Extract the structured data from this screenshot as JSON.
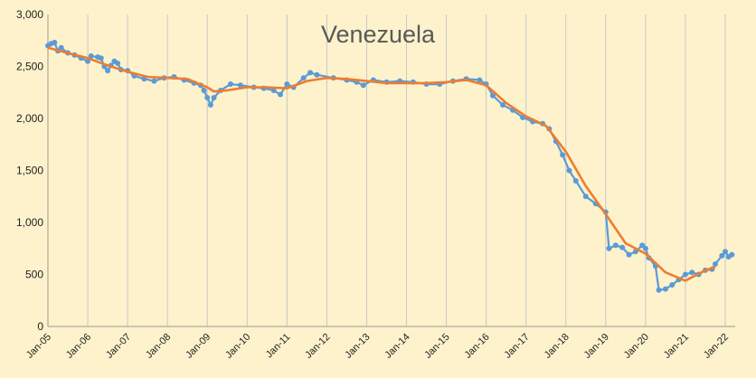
{
  "chart_data": {
    "type": "line",
    "title": "Venezuela",
    "xlabel": "",
    "ylabel": "",
    "ylim": [
      0,
      3000
    ],
    "y_ticks": [
      "0",
      "500",
      "1,000",
      "1,500",
      "2,000",
      "2,500",
      "3,000"
    ],
    "x_tick_labels": [
      "Jan-05",
      "Jan-06",
      "Jan-07",
      "Jan-08",
      "Jan-09",
      "Jan-10",
      "Jan-11",
      "Jan-12",
      "Jan-13",
      "Jan-14",
      "Jan-15",
      "Jan-16",
      "Jan-17",
      "Jan-18",
      "Jan-19",
      "Jan-20",
      "Jan-21",
      "Jan-22"
    ],
    "x_range": [
      "2005-01",
      "2022-04"
    ],
    "grid": "vertical gridlines",
    "legend": "none",
    "series": [
      {
        "color": "#5b9bd5",
        "marker": "circle",
        "points": [
          [
            "2005-01",
            2700
          ],
          [
            "2005-02",
            2720
          ],
          [
            "2005-03",
            2730
          ],
          [
            "2005-04",
            2650
          ],
          [
            "2005-05",
            2680
          ],
          [
            "2005-07",
            2630
          ],
          [
            "2005-09",
            2610
          ],
          [
            "2005-11",
            2580
          ],
          [
            "2006-01",
            2550
          ],
          [
            "2006-02",
            2600
          ],
          [
            "2006-04",
            2590
          ],
          [
            "2006-05",
            2580
          ],
          [
            "2006-06",
            2500
          ],
          [
            "2006-07",
            2460
          ],
          [
            "2006-08",
            2510
          ],
          [
            "2006-09",
            2550
          ],
          [
            "2006-10",
            2530
          ],
          [
            "2006-11",
            2470
          ],
          [
            "2007-01",
            2460
          ],
          [
            "2007-03",
            2410
          ],
          [
            "2007-06",
            2380
          ],
          [
            "2007-09",
            2360
          ],
          [
            "2007-12",
            2390
          ],
          [
            "2008-03",
            2400
          ],
          [
            "2008-06",
            2370
          ],
          [
            "2008-09",
            2340
          ],
          [
            "2008-11",
            2320
          ],
          [
            "2008-12",
            2270
          ],
          [
            "2009-01",
            2200
          ],
          [
            "2009-02",
            2130
          ],
          [
            "2009-03",
            2200
          ],
          [
            "2009-05",
            2270
          ],
          [
            "2009-08",
            2330
          ],
          [
            "2009-11",
            2320
          ],
          [
            "2010-03",
            2300
          ],
          [
            "2010-06",
            2290
          ],
          [
            "2010-09",
            2270
          ],
          [
            "2010-11",
            2230
          ],
          [
            "2011-01",
            2330
          ],
          [
            "2011-03",
            2300
          ],
          [
            "2011-06",
            2390
          ],
          [
            "2011-08",
            2440
          ],
          [
            "2011-10",
            2420
          ],
          [
            "2012-03",
            2390
          ],
          [
            "2012-07",
            2370
          ],
          [
            "2012-10",
            2350
          ],
          [
            "2012-12",
            2320
          ],
          [
            "2013-03",
            2370
          ],
          [
            "2013-07",
            2350
          ],
          [
            "2013-11",
            2360
          ],
          [
            "2014-03",
            2350
          ],
          [
            "2014-07",
            2330
          ],
          [
            "2014-11",
            2330
          ],
          [
            "2015-03",
            2360
          ],
          [
            "2015-07",
            2380
          ],
          [
            "2015-11",
            2370
          ],
          [
            "2016-01",
            2330
          ],
          [
            "2016-03",
            2220
          ],
          [
            "2016-06",
            2130
          ],
          [
            "2016-09",
            2080
          ],
          [
            "2016-12",
            2010
          ],
          [
            "2017-03",
            1970
          ],
          [
            "2017-06",
            1950
          ],
          [
            "2017-08",
            1900
          ],
          [
            "2017-10",
            1780
          ],
          [
            "2017-12",
            1650
          ],
          [
            "2018-02",
            1500
          ],
          [
            "2018-04",
            1400
          ],
          [
            "2018-07",
            1250
          ],
          [
            "2018-10",
            1180
          ],
          [
            "2019-01",
            1100
          ],
          [
            "2019-02",
            750
          ],
          [
            "2019-04",
            780
          ],
          [
            "2019-06",
            760
          ],
          [
            "2019-08",
            690
          ],
          [
            "2019-10",
            720
          ],
          [
            "2019-12",
            780
          ],
          [
            "2020-01",
            750
          ],
          [
            "2020-02",
            660
          ],
          [
            "2020-04",
            580
          ],
          [
            "2020-05",
            350
          ],
          [
            "2020-07",
            360
          ],
          [
            "2020-09",
            400
          ],
          [
            "2020-11",
            450
          ],
          [
            "2021-01",
            500
          ],
          [
            "2021-03",
            520
          ],
          [
            "2021-05",
            500
          ],
          [
            "2021-07",
            540
          ],
          [
            "2021-09",
            550
          ],
          [
            "2021-10",
            600
          ],
          [
            "2021-12",
            680
          ],
          [
            "2022-01",
            720
          ],
          [
            "2022-02",
            670
          ],
          [
            "2022-03",
            690
          ]
        ]
      },
      {
        "color": "#ed7d31",
        "marker": "none",
        "points": [
          [
            "2005-01",
            2680
          ],
          [
            "2005-07",
            2630
          ],
          [
            "2006-01",
            2580
          ],
          [
            "2006-07",
            2510
          ],
          [
            "2007-01",
            2450
          ],
          [
            "2007-07",
            2400
          ],
          [
            "2008-01",
            2390
          ],
          [
            "2008-07",
            2380
          ],
          [
            "2009-01",
            2300
          ],
          [
            "2009-03",
            2260
          ],
          [
            "2009-07",
            2270
          ],
          [
            "2010-01",
            2300
          ],
          [
            "2010-07",
            2300
          ],
          [
            "2011-01",
            2290
          ],
          [
            "2011-07",
            2360
          ],
          [
            "2012-01",
            2390
          ],
          [
            "2012-07",
            2380
          ],
          [
            "2013-01",
            2360
          ],
          [
            "2013-07",
            2340
          ],
          [
            "2014-01",
            2340
          ],
          [
            "2014-07",
            2340
          ],
          [
            "2015-01",
            2350
          ],
          [
            "2015-07",
            2370
          ],
          [
            "2016-01",
            2320
          ],
          [
            "2016-07",
            2150
          ],
          [
            "2017-01",
            2020
          ],
          [
            "2017-07",
            1930
          ],
          [
            "2018-01",
            1680
          ],
          [
            "2018-07",
            1350
          ],
          [
            "2019-01",
            1080
          ],
          [
            "2019-07",
            800
          ],
          [
            "2020-01",
            700
          ],
          [
            "2020-07",
            520
          ],
          [
            "2021-01",
            440
          ],
          [
            "2021-07",
            540
          ],
          [
            "2021-10",
            570
          ]
        ]
      }
    ]
  }
}
